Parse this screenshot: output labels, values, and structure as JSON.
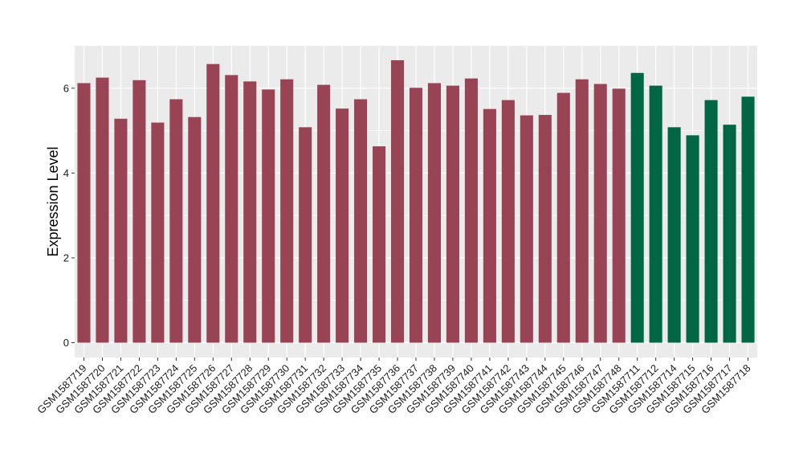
{
  "chart_data": {
    "type": "bar",
    "ylabel": "Expression Level",
    "xlabel": "",
    "ylim": [
      -0.35,
      7.0
    ],
    "yticks": [
      0,
      2,
      4,
      6
    ],
    "grid": true,
    "legend": "none",
    "panel_color": "#ebebeb",
    "categories": [
      "GSM1587719",
      "GSM1587720",
      "GSM1587721",
      "GSM1587722",
      "GSM1587723",
      "GSM1587724",
      "GSM1587725",
      "GSM1587726",
      "GSM1587727",
      "GSM1587728",
      "GSM1587729",
      "GSM1587730",
      "GSM1587731",
      "GSM1587732",
      "GSM1587733",
      "GSM1587734",
      "GSM1587735",
      "GSM1587736",
      "GSM1587737",
      "GSM1587738",
      "GSM1587739",
      "GSM1587740",
      "GSM1587741",
      "GSM1587742",
      "GSM1587743",
      "GSM1587744",
      "GSM1587745",
      "GSM1587746",
      "GSM1587747",
      "GSM1587748",
      "GSM1587711",
      "GSM1587712",
      "GSM1587714",
      "GSM1587715",
      "GSM1587716",
      "GSM1587717",
      "GSM1587718"
    ],
    "values": [
      6.12,
      6.25,
      5.28,
      6.19,
      5.19,
      5.74,
      5.32,
      6.57,
      6.31,
      6.16,
      5.97,
      6.21,
      5.08,
      6.08,
      5.52,
      5.74,
      4.63,
      6.66,
      6.01,
      6.12,
      6.06,
      6.23,
      5.51,
      5.72,
      5.36,
      5.37,
      5.89,
      6.21,
      6.1,
      5.99,
      6.36,
      6.06,
      5.08,
      4.89,
      5.72,
      5.14,
      5.8
    ],
    "bar_colors": [
      "#994455",
      "#994455",
      "#994455",
      "#994455",
      "#994455",
      "#994455",
      "#994455",
      "#994455",
      "#994455",
      "#994455",
      "#994455",
      "#994455",
      "#994455",
      "#994455",
      "#994455",
      "#994455",
      "#994455",
      "#994455",
      "#994455",
      "#994455",
      "#994455",
      "#994455",
      "#994455",
      "#994455",
      "#994455",
      "#994455",
      "#994455",
      "#994455",
      "#994455",
      "#994455",
      "#006644",
      "#006644",
      "#006644",
      "#006644",
      "#006644",
      "#006644",
      "#006644"
    ]
  }
}
